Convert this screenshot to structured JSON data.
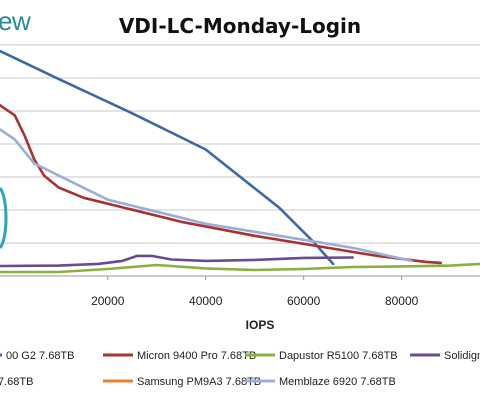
{
  "brand": {
    "logo_fragment": "ew"
  },
  "chart_data": {
    "type": "line",
    "title": "VDI-LC-Monday-Login",
    "xlabel": "IOPS",
    "ylabel": "",
    "xlim": [
      -2000,
      96000
    ],
    "ylim": [
      0,
      11.5
    ],
    "x_ticks": [
      20000,
      40000,
      60000,
      80000
    ],
    "x_tick_labels": [
      "20000",
      "40000",
      "60000",
      "80000"
    ],
    "grid": "horizontal",
    "legend_position": "bottom",
    "series": [
      {
        "name": "00 G2 7.68TB",
        "color": "#3a6aa8",
        "points": [
          [
            -2000,
            11.2
          ],
          [
            10000,
            9.8
          ],
          [
            25000,
            8.1
          ],
          [
            40000,
            6.3
          ],
          [
            55000,
            3.4
          ],
          [
            62000,
            1.7
          ],
          [
            66000,
            0.6
          ]
        ]
      },
      {
        "name": "Micron 9400 Pro 7.68TB",
        "color": "#a83232",
        "points": [
          [
            -2000,
            8.5
          ],
          [
            1000,
            8.0
          ],
          [
            3000,
            7.0
          ],
          [
            5000,
            5.8
          ],
          [
            7000,
            5.0
          ],
          [
            10000,
            4.4
          ],
          [
            15000,
            3.9
          ],
          [
            25000,
            3.3
          ],
          [
            35000,
            2.7
          ],
          [
            50000,
            2.0
          ],
          [
            65000,
            1.4
          ],
          [
            75000,
            1.0
          ],
          [
            85000,
            0.7
          ],
          [
            88000,
            0.65
          ]
        ]
      },
      {
        "name": "Dapustor R5100 7.68TB",
        "color": "#8ab040",
        "points": [
          [
            -2000,
            0.2
          ],
          [
            10000,
            0.2
          ],
          [
            20000,
            0.35
          ],
          [
            30000,
            0.55
          ],
          [
            40000,
            0.38
          ],
          [
            50000,
            0.3
          ],
          [
            60000,
            0.35
          ],
          [
            70000,
            0.45
          ],
          [
            80000,
            0.48
          ],
          [
            90000,
            0.52
          ],
          [
            96000,
            0.6
          ]
        ]
      },
      {
        "name": "Solidign",
        "color": "#6a4a90",
        "points": [
          [
            -2000,
            0.5
          ],
          [
            10000,
            0.52
          ],
          [
            18000,
            0.6
          ],
          [
            23000,
            0.75
          ],
          [
            26000,
            1.0
          ],
          [
            29000,
            1.0
          ],
          [
            33000,
            0.82
          ],
          [
            40000,
            0.75
          ],
          [
            50000,
            0.8
          ],
          [
            60000,
            0.9
          ],
          [
            70000,
            0.92
          ]
        ]
      },
      {
        "name": "Samsung PM9A3 7.68TB",
        "color": "#e8822a",
        "points": []
      },
      {
        "name": "Memblaze 6920 7.68TB",
        "color": "#9aaed8",
        "points": [
          [
            -2000,
            7.3
          ],
          [
            1000,
            6.8
          ],
          [
            5000,
            5.6
          ],
          [
            10000,
            5.0
          ],
          [
            20000,
            3.8
          ],
          [
            30000,
            3.2
          ],
          [
            40000,
            2.6
          ],
          [
            50000,
            2.2
          ],
          [
            60000,
            1.8
          ],
          [
            70000,
            1.4
          ],
          [
            82000,
            0.75
          ]
        ]
      }
    ],
    "legend_row1": [
      {
        "label": "00 G2 7.68TB",
        "color": "#3a6aa8"
      },
      {
        "label": "Micron 9400 Pro 7.68TB",
        "color": "#a83232"
      },
      {
        "label": "Dapustor R5100 7.68TB",
        "color": "#8ab040"
      },
      {
        "label": "Solidign",
        "color": "#6a4a90"
      }
    ],
    "legend_row2": [
      {
        "label": "7.68TB",
        "color": "#2aa8b8"
      },
      {
        "label": "Samsung PM9A3 7.68TB",
        "color": "#e8822a"
      },
      {
        "label": "Memblaze 6920 7.68TB",
        "color": "#9aaed8"
      }
    ]
  }
}
